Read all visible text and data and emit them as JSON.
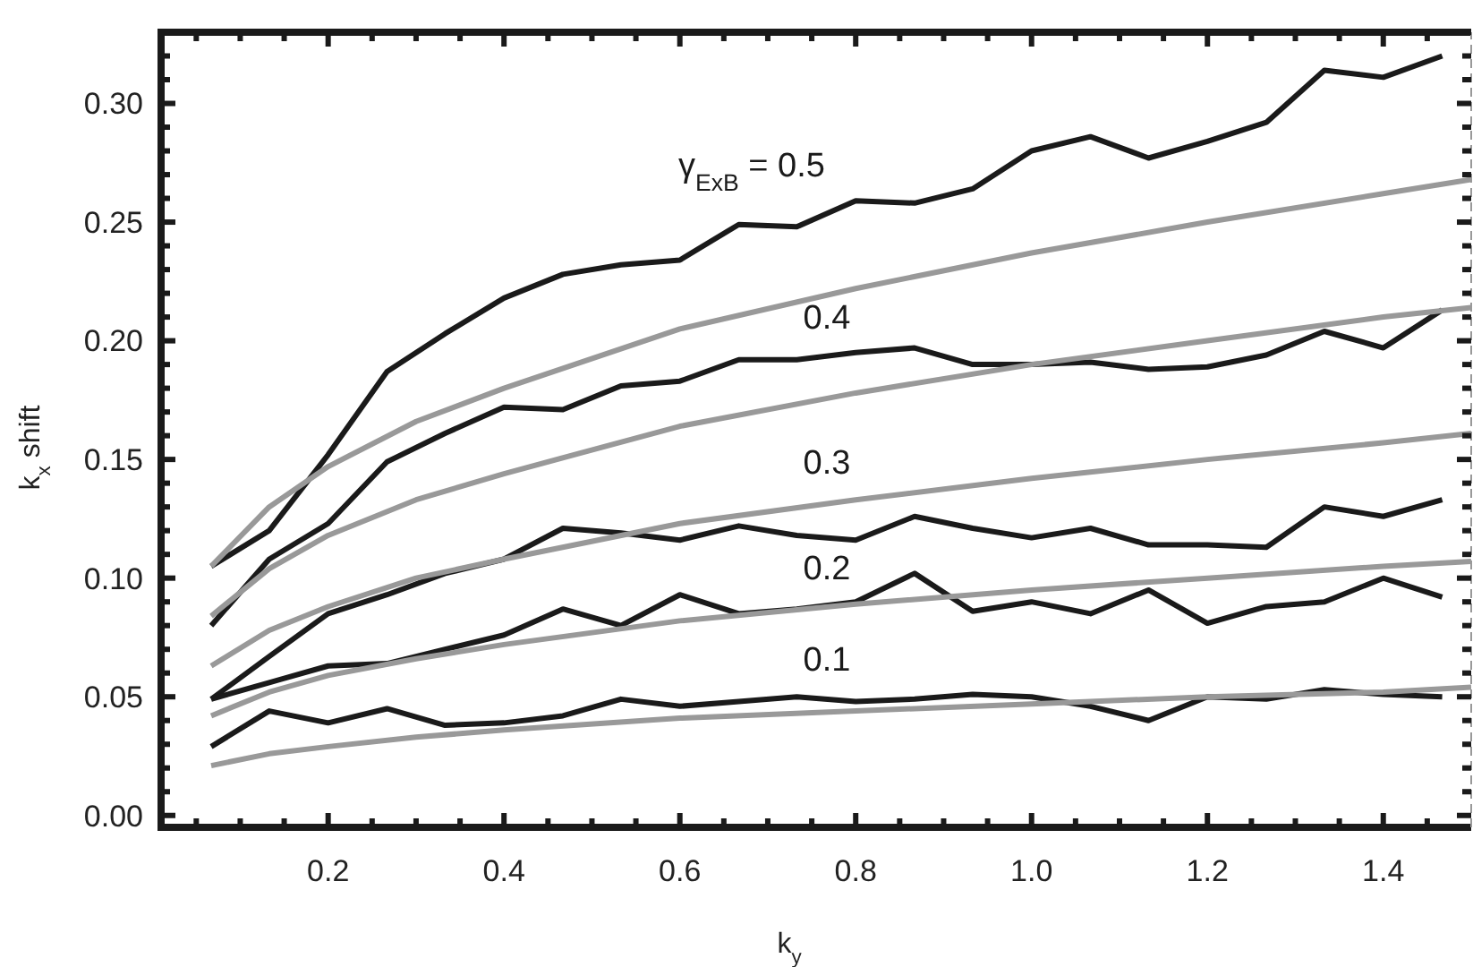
{
  "chart_data": {
    "type": "line",
    "xlabel": "k$_{y}$",
    "ylabel": "k$_{x}$ shift",
    "xlim": [
      0.01,
      1.5
    ],
    "ylim": [
      -0.005,
      0.33
    ],
    "xticks": [
      {
        "value": 0.05,
        "label": null
      },
      {
        "value": 0.1,
        "label": null
      },
      {
        "value": 0.15,
        "label": null
      },
      0.2,
      {
        "value": 0.25,
        "label": null
      },
      {
        "value": 0.3,
        "label": null
      },
      {
        "value": 0.35,
        "label": null
      },
      0.4,
      {
        "value": 0.45,
        "label": null
      },
      {
        "value": 0.5,
        "label": null
      },
      {
        "value": 0.55,
        "label": null
      },
      0.6,
      {
        "value": 0.65,
        "label": null
      },
      {
        "value": 0.7,
        "label": null
      },
      {
        "value": 0.75,
        "label": null
      },
      0.8,
      {
        "value": 0.85,
        "label": null
      },
      {
        "value": 0.9,
        "label": null
      },
      {
        "value": 0.95,
        "label": null
      },
      {
        "value": 1.0,
        "label": "1.0"
      },
      {
        "value": 1.05,
        "label": null
      },
      {
        "value": 1.1,
        "label": null
      },
      {
        "value": 1.15,
        "label": null
      },
      1.2,
      {
        "value": 1.25,
        "label": null
      },
      {
        "value": 1.3,
        "label": null
      },
      {
        "value": 1.35,
        "label": null
      },
      1.4,
      {
        "value": 1.45,
        "label": null
      }
    ],
    "yticks": [
      {
        "value": 0,
        "label": "0.00"
      },
      {
        "value": 0.01,
        "label": null
      },
      {
        "value": 0.02,
        "label": null
      },
      {
        "value": 0.03,
        "label": null
      },
      {
        "value": 0.04,
        "label": null
      },
      0.05,
      {
        "value": 0.06,
        "label": null
      },
      {
        "value": 0.07,
        "label": null
      },
      {
        "value": 0.08,
        "label": null
      },
      {
        "value": 0.09,
        "label": null
      },
      {
        "value": 0.1,
        "label": "0.10"
      },
      {
        "value": 0.11,
        "label": null
      },
      {
        "value": 0.12,
        "label": null
      },
      {
        "value": 0.13,
        "label": null
      },
      {
        "value": 0.14,
        "label": null
      },
      0.15,
      {
        "value": 0.16,
        "label": null
      },
      {
        "value": 0.17,
        "label": null
      },
      {
        "value": 0.18,
        "label": null
      },
      {
        "value": 0.19,
        "label": null
      },
      {
        "value": 0.2,
        "label": "0.20"
      },
      {
        "value": 0.21,
        "label": null
      },
      {
        "value": 0.22,
        "label": null
      },
      {
        "value": 0.23,
        "label": null
      },
      {
        "value": 0.24,
        "label": null
      },
      0.25,
      {
        "value": 0.26,
        "label": null
      },
      {
        "value": 0.27,
        "label": null
      },
      {
        "value": 0.28,
        "label": null
      },
      {
        "value": 0.29,
        "label": null
      },
      {
        "value": 0.3,
        "label": "0.30"
      },
      {
        "value": 0.31,
        "label": null
      },
      {
        "value": 0.32,
        "label": null
      },
      {
        "value": 0.33,
        "label": null
      }
    ],
    "x": [
      0.067,
      0.133,
      0.2,
      0.267,
      0.333,
      0.4,
      0.467,
      0.533,
      0.6,
      0.667,
      0.733,
      0.8,
      0.867,
      0.933,
      1.0,
      1.067,
      1.133,
      1.2,
      1.267,
      1.333,
      1.4,
      1.467
    ],
    "series": [
      {
        "color": "#1a1a1a",
        "values": [
          0.105,
          0.12,
          0.152,
          0.187,
          0.203,
          0.218,
          0.228,
          0.232,
          0.234,
          0.249,
          0.248,
          0.259,
          0.258,
          0.264,
          0.28,
          0.286,
          0.277,
          0.284,
          0.292,
          0.314,
          0.311,
          0.32
        ]
      },
      {
        "color": "#1a1a1a",
        "values": [
          0.08,
          0.108,
          0.123,
          0.149,
          0.161,
          0.172,
          0.171,
          0.181,
          0.183,
          0.192,
          0.192,
          0.195,
          0.197,
          0.19,
          0.19,
          0.191,
          0.188,
          0.189,
          0.194,
          0.204,
          0.197,
          0.213
        ]
      },
      {
        "color": "#1a1a1a",
        "values": [
          0.049,
          0.067,
          0.085,
          0.093,
          0.102,
          0.108,
          0.121,
          0.119,
          0.116,
          0.122,
          0.118,
          0.116,
          0.126,
          0.121,
          0.117,
          0.121,
          0.114,
          0.114,
          0.113,
          0.13,
          0.126,
          0.133
        ]
      },
      {
        "color": "#1a1a1a",
        "values": [
          0.049,
          0.056,
          0.063,
          0.064,
          0.07,
          0.076,
          0.087,
          0.08,
          0.093,
          0.085,
          0.087,
          0.09,
          0.102,
          0.086,
          0.09,
          0.085,
          0.095,
          0.081,
          0.088,
          0.09,
          0.1,
          0.092
        ]
      },
      {
        "color": "#1a1a1a",
        "values": [
          0.029,
          0.044,
          0.039,
          0.045,
          0.038,
          0.039,
          0.042,
          0.049,
          0.046,
          0.048,
          0.05,
          0.048,
          0.049,
          0.051,
          0.05,
          0.046,
          0.04,
          0.05,
          0.049,
          0.053,
          0.051,
          0.05
        ]
      },
      {
        "color": "#999999",
        "x": [
          0.067,
          0.133,
          0.2,
          0.3,
          0.4,
          0.6,
          0.8,
          1.0,
          1.2,
          1.4,
          1.5
        ],
        "values": [
          0.105,
          0.13,
          0.147,
          0.166,
          0.18,
          0.205,
          0.222,
          0.237,
          0.25,
          0.262,
          0.268
        ]
      },
      {
        "color": "#999999",
        "x": [
          0.067,
          0.133,
          0.2,
          0.3,
          0.4,
          0.6,
          0.8,
          1.0,
          1.2,
          1.4,
          1.5
        ],
        "values": [
          0.084,
          0.104,
          0.118,
          0.133,
          0.144,
          0.164,
          0.178,
          0.19,
          0.2,
          0.21,
          0.214
        ]
      },
      {
        "color": "#999999",
        "x": [
          0.067,
          0.133,
          0.2,
          0.3,
          0.4,
          0.6,
          0.8,
          1.0,
          1.2,
          1.4,
          1.5
        ],
        "values": [
          0.063,
          0.078,
          0.088,
          0.1,
          0.108,
          0.123,
          0.133,
          0.142,
          0.15,
          0.157,
          0.161
        ]
      },
      {
        "color": "#999999",
        "x": [
          0.067,
          0.133,
          0.2,
          0.3,
          0.4,
          0.6,
          0.8,
          1.0,
          1.2,
          1.4,
          1.5
        ],
        "values": [
          0.042,
          0.052,
          0.059,
          0.066,
          0.072,
          0.082,
          0.089,
          0.095,
          0.1,
          0.105,
          0.107
        ]
      },
      {
        "color": "#999999",
        "x": [
          0.067,
          0.133,
          0.2,
          0.3,
          0.4,
          0.6,
          0.8,
          1.0,
          1.2,
          1.4,
          1.5
        ],
        "values": [
          0.021,
          0.026,
          0.029,
          0.033,
          0.036,
          0.041,
          0.044,
          0.047,
          0.05,
          0.052,
          0.054
        ]
      }
    ],
    "annotations": [
      "γ$_{ExB}$ =  0.5",
      "0.4",
      "0.3",
      "0.2",
      "0.1"
    ],
    "grid": false,
    "marker": "none",
    "line_style": "solid"
  }
}
